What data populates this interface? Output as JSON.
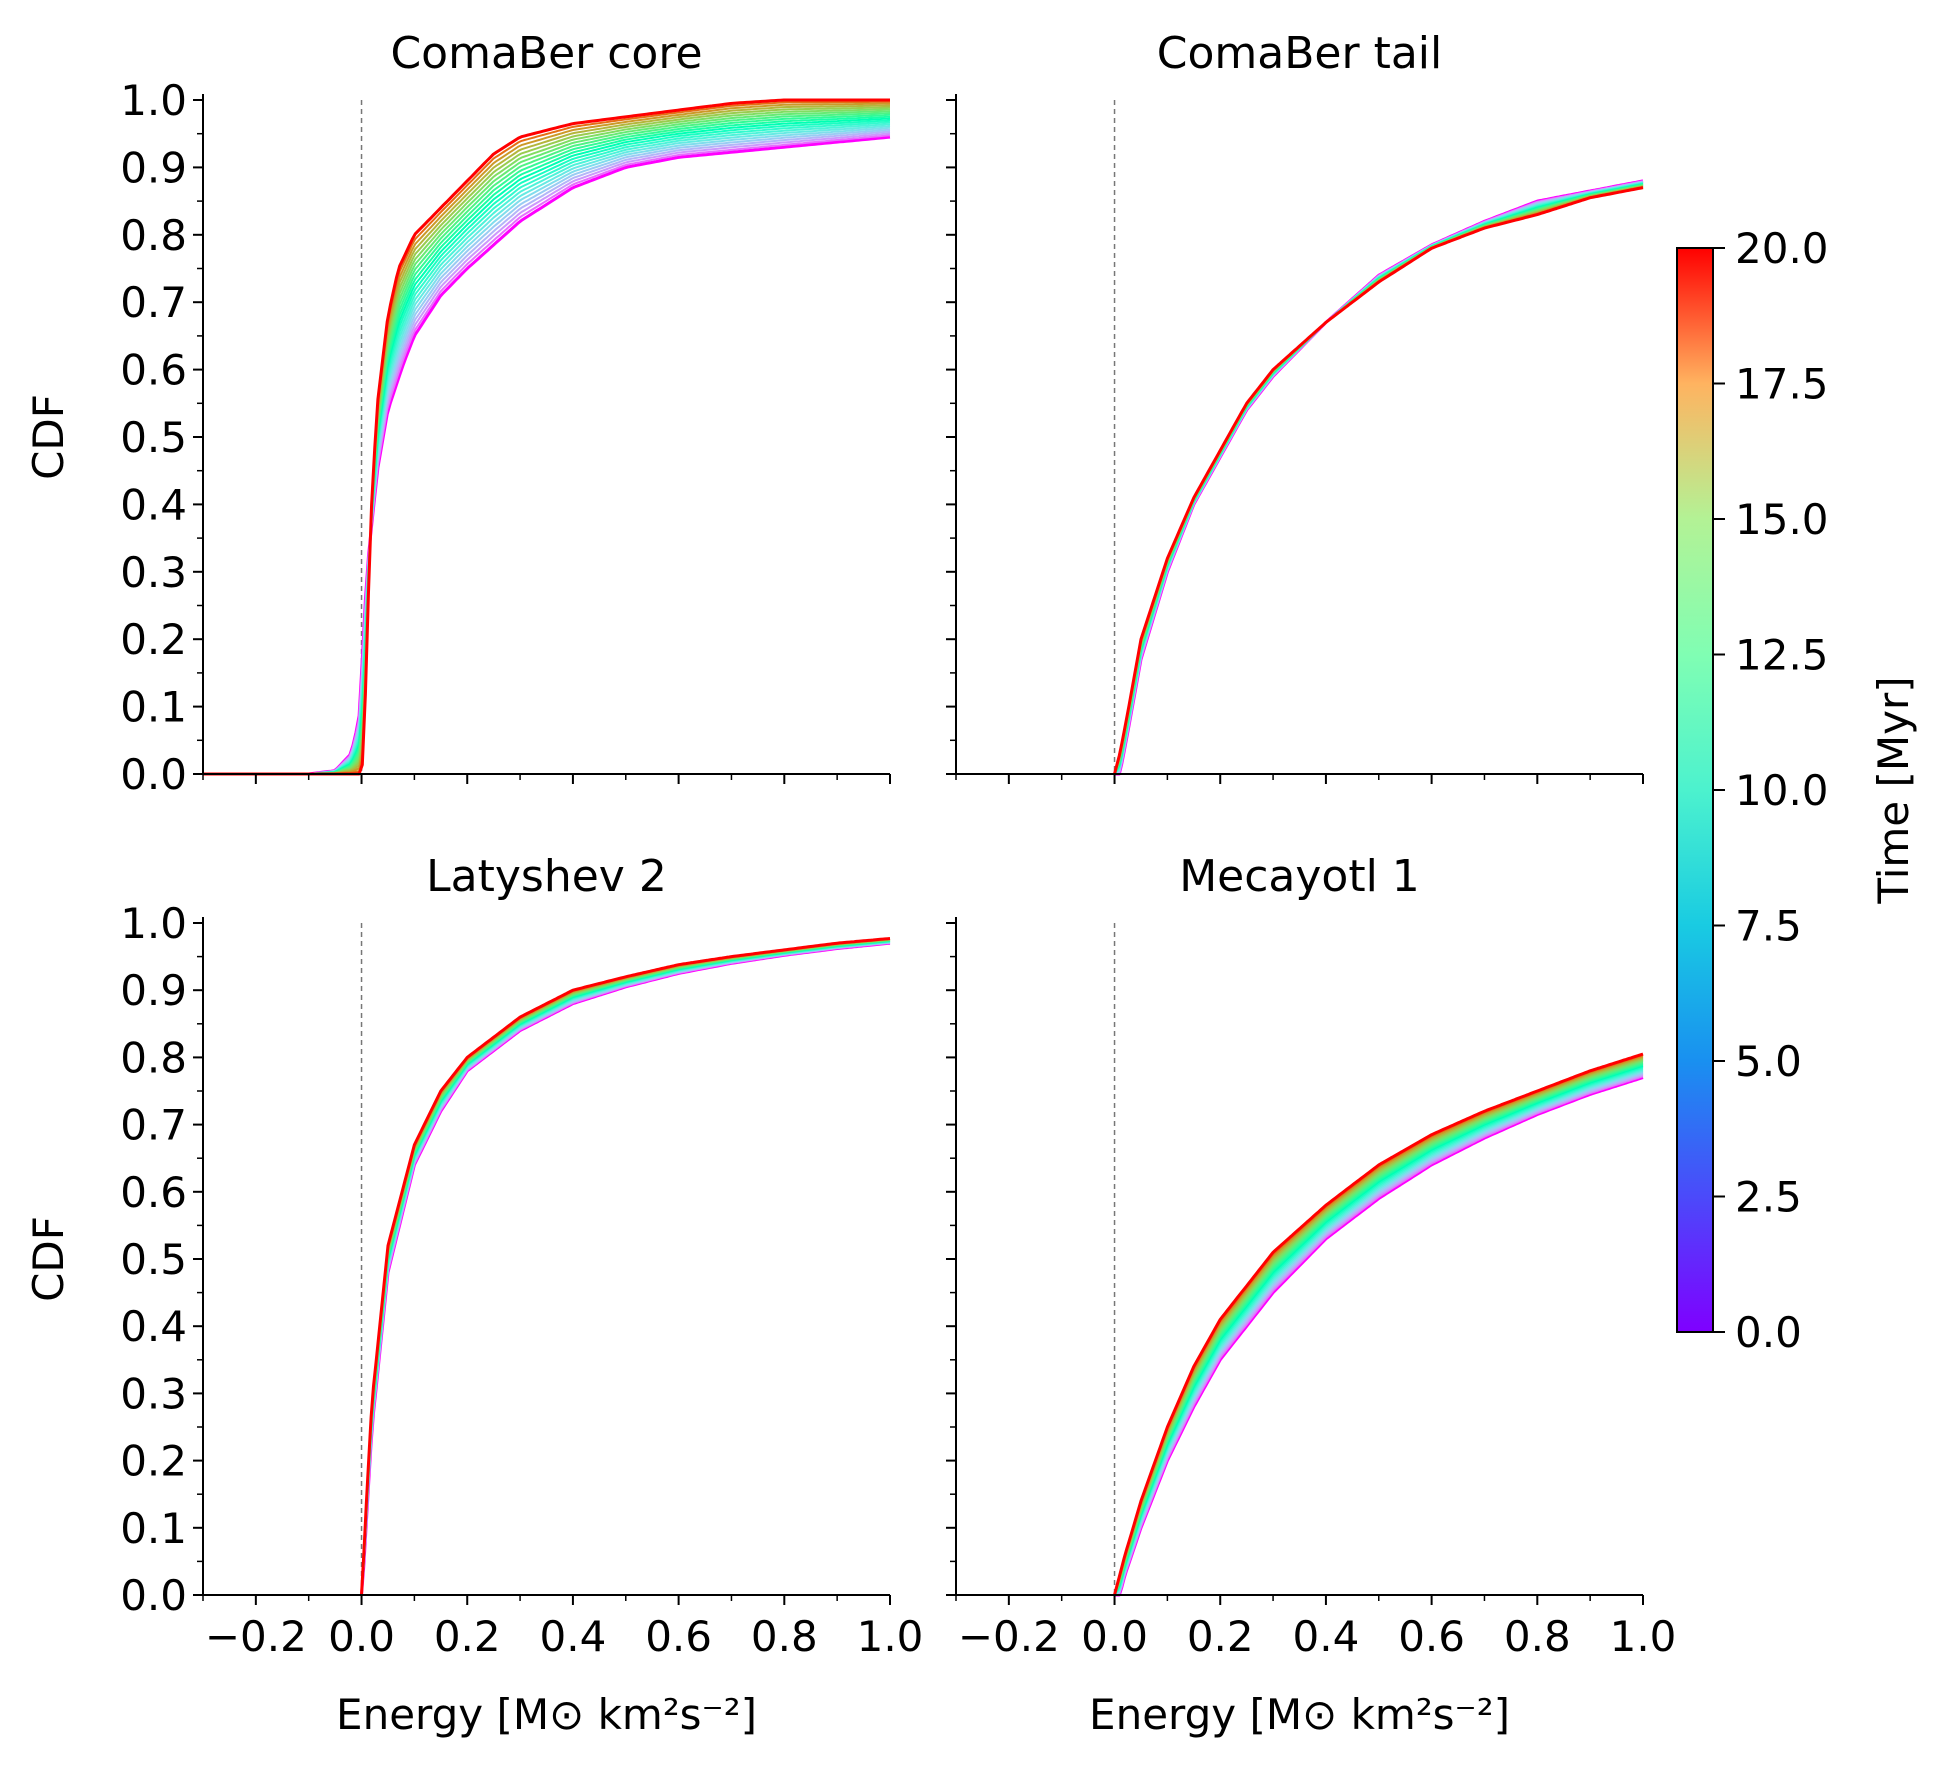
{
  "chart_data": {
    "type": "line",
    "layout": "2x2 grid with shared colorbar",
    "x_label": "Energy [M⊙ km²s⁻²]",
    "y_label": "CDF",
    "xlim": [
      -0.3,
      1.0
    ],
    "ylim": [
      0.0,
      1.0
    ],
    "x_ticks": [
      -0.2,
      0.0,
      0.2,
      0.4,
      0.6,
      0.8,
      1.0
    ],
    "x_tick_labels": [
      "−0.2",
      "0.0",
      "0.2",
      "0.4",
      "0.6",
      "0.8",
      "1.0"
    ],
    "y_ticks": [
      0.0,
      0.1,
      0.2,
      0.3,
      0.4,
      0.5,
      0.6,
      0.7,
      0.8,
      0.9,
      1.0
    ],
    "y_tick_labels": [
      "0.0",
      "0.1",
      "0.2",
      "0.3",
      "0.4",
      "0.5",
      "0.6",
      "0.7",
      "0.8",
      "0.9",
      "1.0"
    ],
    "reference_line_x": 0.0,
    "colorbar": {
      "label": "Time [Myr]",
      "colormap": "rainbow",
      "range": [
        0.0,
        20.0
      ],
      "ticks": [
        0.0,
        2.5,
        5.0,
        7.5,
        10.0,
        12.5,
        15.0,
        17.5,
        20.0
      ],
      "tick_labels": [
        "0.0",
        "2.5",
        "5.0",
        "7.5",
        "10.0",
        "12.5",
        "15.0",
        "17.5",
        "20.0"
      ]
    },
    "panels": [
      {
        "title": "ComaBer core",
        "note": "CDF curves at snapshot times 0 (purple) to 20 Myr (red)",
        "series": [
          {
            "time_myr": 0.0,
            "x": [
              -0.3,
              -0.1,
              -0.05,
              -0.02,
              -0.005,
              0.0,
              0.01,
              0.03,
              0.05,
              0.08,
              0.1,
              0.15,
              0.2,
              0.3,
              0.4,
              0.5,
              0.6,
              0.8,
              1.0
            ],
            "y": [
              0.0,
              0.0,
              0.005,
              0.03,
              0.08,
              0.15,
              0.3,
              0.45,
              0.54,
              0.61,
              0.65,
              0.71,
              0.75,
              0.82,
              0.87,
              0.9,
              0.915,
              0.93,
              0.945
            ]
          },
          {
            "time_myr": 20.0,
            "x": [
              -0.3,
              0.0,
              0.005,
              0.01,
              0.02,
              0.03,
              0.05,
              0.07,
              0.1,
              0.15,
              0.2,
              0.25,
              0.3,
              0.4,
              0.5,
              0.6,
              0.7,
              0.8,
              1.0
            ],
            "y": [
              0.0,
              0.0,
              0.05,
              0.2,
              0.42,
              0.55,
              0.68,
              0.75,
              0.8,
              0.84,
              0.88,
              0.92,
              0.945,
              0.965,
              0.975,
              0.985,
              0.995,
              1.0,
              1.0
            ]
          }
        ]
      },
      {
        "title": "ComaBer tail",
        "note": "curves nearly overlap for all times",
        "series": [
          {
            "time_myr": 0.0,
            "x": [
              0.0,
              0.01,
              0.02,
              0.05,
              0.1,
              0.15,
              0.2,
              0.25,
              0.3,
              0.4,
              0.5,
              0.6,
              0.7,
              0.8,
              0.9,
              1.0
            ],
            "y": [
              0.0,
              0.0,
              0.04,
              0.17,
              0.3,
              0.4,
              0.47,
              0.54,
              0.59,
              0.67,
              0.74,
              0.785,
              0.82,
              0.85,
              0.865,
              0.88
            ]
          },
          {
            "time_myr": 20.0,
            "x": [
              0.0,
              0.01,
              0.02,
              0.05,
              0.1,
              0.15,
              0.2,
              0.25,
              0.3,
              0.4,
              0.5,
              0.6,
              0.7,
              0.8,
              0.9,
              1.0
            ],
            "y": [
              0.0,
              0.03,
              0.07,
              0.2,
              0.32,
              0.41,
              0.48,
              0.55,
              0.6,
              0.67,
              0.73,
              0.78,
              0.81,
              0.83,
              0.855,
              0.87
            ]
          }
        ]
      },
      {
        "title": "Latyshev 2",
        "note": "tightly grouped curves",
        "series": [
          {
            "time_myr": 0.0,
            "x": [
              0.0,
              0.005,
              0.01,
              0.02,
              0.05,
              0.1,
              0.15,
              0.2,
              0.3,
              0.4,
              0.5,
              0.6,
              0.7,
              0.8,
              0.9,
              1.0
            ],
            "y": [
              0.0,
              0.05,
              0.12,
              0.25,
              0.48,
              0.64,
              0.72,
              0.78,
              0.84,
              0.88,
              0.905,
              0.925,
              0.94,
              0.952,
              0.962,
              0.97
            ]
          },
          {
            "time_myr": 20.0,
            "x": [
              0.0,
              0.005,
              0.01,
              0.02,
              0.05,
              0.1,
              0.15,
              0.2,
              0.3,
              0.4,
              0.5,
              0.6,
              0.7,
              0.8,
              0.9,
              1.0
            ],
            "y": [
              0.0,
              0.07,
              0.15,
              0.29,
              0.52,
              0.67,
              0.75,
              0.8,
              0.86,
              0.9,
              0.92,
              0.938,
              0.95,
              0.96,
              0.97,
              0.977
            ]
          }
        ]
      },
      {
        "title": "Mecayotl 1",
        "note": "gradual rise, curves fan out slightly",
        "series": [
          {
            "time_myr": 0.0,
            "x": [
              0.0,
              0.01,
              0.02,
              0.05,
              0.1,
              0.15,
              0.2,
              0.3,
              0.4,
              0.5,
              0.6,
              0.7,
              0.8,
              0.9,
              1.0
            ],
            "y": [
              0.0,
              0.0,
              0.03,
              0.1,
              0.2,
              0.28,
              0.35,
              0.45,
              0.53,
              0.59,
              0.64,
              0.68,
              0.715,
              0.745,
              0.77
            ]
          },
          {
            "time_myr": 20.0,
            "x": [
              0.0,
              0.01,
              0.02,
              0.05,
              0.1,
              0.15,
              0.2,
              0.3,
              0.4,
              0.5,
              0.6,
              0.7,
              0.8,
              0.9,
              1.0
            ],
            "y": [
              0.0,
              0.03,
              0.06,
              0.14,
              0.25,
              0.34,
              0.41,
              0.51,
              0.58,
              0.64,
              0.685,
              0.72,
              0.75,
              0.78,
              0.805
            ]
          }
        ]
      }
    ]
  }
}
